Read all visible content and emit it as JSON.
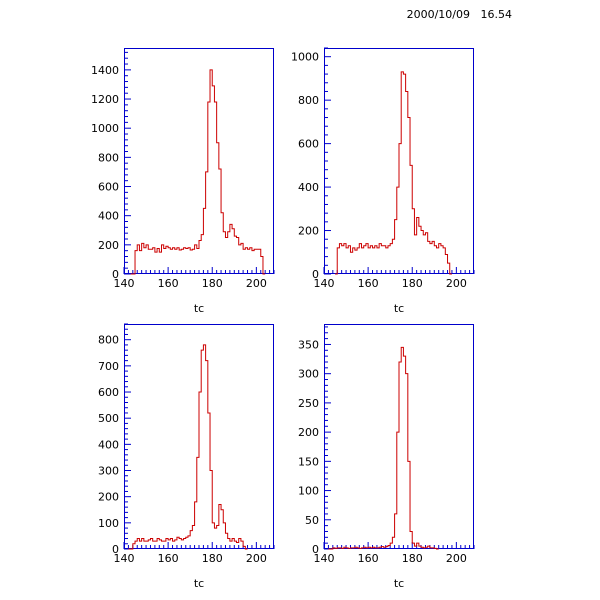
{
  "timestamp": "2000/10/09   16.54",
  "colors": {
    "frame": "#0000cc",
    "hist": "#cc0000",
    "text": "#000000"
  },
  "chart_data": [
    {
      "type": "step",
      "xlabel": "tc",
      "xlim": [
        140,
        208
      ],
      "ylim": [
        0,
        1550
      ],
      "xticks": [
        140,
        160,
        180,
        200
      ],
      "yticks": [
        0,
        200,
        400,
        600,
        800,
        1000,
        1200,
        1400
      ],
      "bin_start": 143,
      "bin_width": 1,
      "values": [
        0,
        0,
        160,
        200,
        160,
        210,
        180,
        200,
        170,
        170,
        180,
        150,
        175,
        150,
        200,
        175,
        190,
        180,
        170,
        180,
        170,
        180,
        165,
        170,
        180,
        175,
        180,
        165,
        170,
        200,
        175,
        230,
        270,
        450,
        700,
        1180,
        1400,
        1290,
        1180,
        900,
        720,
        420,
        290,
        250,
        290,
        340,
        310,
        260,
        250,
        200,
        210,
        170,
        180,
        170,
        180,
        160,
        170,
        170,
        170,
        120,
        0
      ]
    },
    {
      "type": "step",
      "xlabel": "tc",
      "xlim": [
        140,
        208
      ],
      "ylim": [
        0,
        1040
      ],
      "xticks": [
        140,
        160,
        180,
        200
      ],
      "yticks": [
        0,
        200,
        400,
        600,
        800,
        1000
      ],
      "bin_start": 145,
      "bin_width": 1,
      "values": [
        0,
        120,
        140,
        130,
        140,
        120,
        130,
        100,
        120,
        110,
        120,
        140,
        120,
        130,
        140,
        120,
        130,
        120,
        130,
        120,
        140,
        130,
        130,
        120,
        130,
        140,
        160,
        250,
        400,
        600,
        930,
        920,
        840,
        720,
        500,
        300,
        180,
        260,
        220,
        200,
        180,
        190,
        150,
        140,
        150,
        130,
        120,
        140,
        130,
        120,
        90,
        50,
        0
      ]
    },
    {
      "type": "step",
      "xlabel": "tc",
      "xlim": [
        140,
        208
      ],
      "ylim": [
        0,
        860
      ],
      "xticks": [
        140,
        160,
        180,
        200
      ],
      "yticks": [
        0,
        100,
        200,
        300,
        400,
        500,
        600,
        700,
        800
      ],
      "bin_start": 142,
      "bin_width": 1,
      "values": [
        0,
        0,
        20,
        30,
        40,
        30,
        40,
        30,
        30,
        35,
        40,
        30,
        30,
        40,
        35,
        30,
        30,
        40,
        35,
        40,
        30,
        35,
        45,
        40,
        35,
        40,
        45,
        50,
        70,
        90,
        180,
        350,
        600,
        760,
        780,
        720,
        520,
        300,
        100,
        80,
        90,
        170,
        150,
        100,
        60,
        40,
        30,
        40,
        30,
        25,
        40,
        30,
        10,
        0
      ]
    },
    {
      "type": "step",
      "xlabel": "tc",
      "xlim": [
        140,
        208
      ],
      "ylim": [
        0,
        385
      ],
      "xticks": [
        140,
        160,
        180,
        200
      ],
      "yticks": [
        0,
        50,
        100,
        150,
        200,
        250,
        300,
        350
      ],
      "bin_start": 142,
      "bin_width": 1,
      "values": [
        0,
        0,
        2,
        1,
        2,
        2,
        1,
        3,
        2,
        1,
        2,
        2,
        3,
        2,
        1,
        2,
        3,
        2,
        3,
        2,
        3,
        2,
        2,
        3,
        4,
        3,
        4,
        6,
        10,
        20,
        60,
        200,
        320,
        345,
        330,
        300,
        150,
        30,
        10,
        5,
        10,
        5,
        3,
        2,
        3,
        5,
        2,
        2,
        1,
        0
      ]
    }
  ]
}
